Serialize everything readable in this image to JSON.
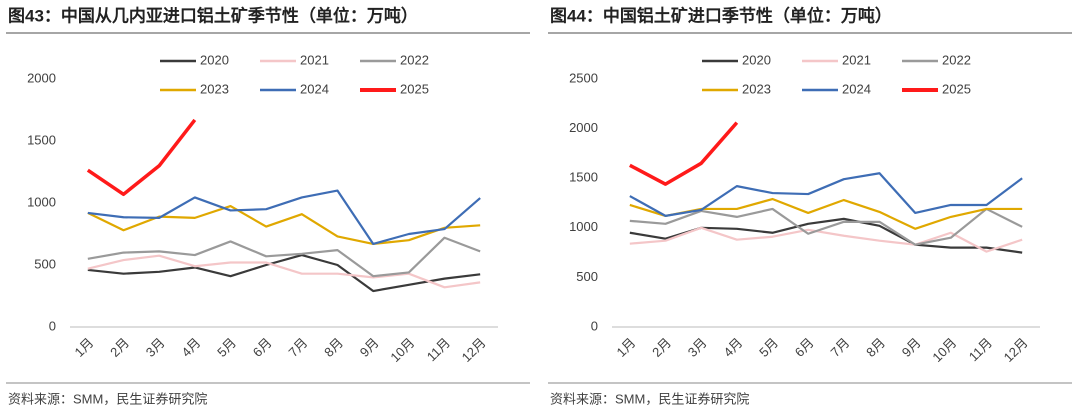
{
  "charts": [
    {
      "type": "line",
      "title": "图43：中国从几内亚进口铝土矿季节性（单位：万吨）",
      "source": "资料来源：SMM，民生证券研究院",
      "categories": [
        "1月",
        "2月",
        "3月",
        "4月",
        "5月",
        "6月",
        "7月",
        "8月",
        "9月",
        "10月",
        "11月",
        "12月"
      ],
      "ylim": [
        0,
        2000
      ],
      "yticks": [
        0,
        500,
        1000,
        1500,
        2000
      ],
      "series": [
        {
          "name": "2020",
          "color": "#3a3a3a",
          "values": [
            460,
            430,
            445,
            480,
            410,
            500,
            580,
            500,
            290,
            340,
            390,
            425
          ]
        },
        {
          "name": "2021",
          "color": "#f4c6c8",
          "values": [
            470,
            540,
            575,
            490,
            520,
            520,
            430,
            430,
            400,
            430,
            320,
            360
          ]
        },
        {
          "name": "2022",
          "color": "#9a9a9a",
          "values": [
            550,
            600,
            610,
            580,
            690,
            570,
            590,
            620,
            410,
            440,
            720,
            610
          ]
        },
        {
          "name": "2023",
          "color": "#e0a800",
          "values": [
            920,
            780,
            890,
            880,
            975,
            810,
            910,
            730,
            670,
            700,
            800,
            820
          ]
        },
        {
          "name": "2024",
          "color": "#3e6db5",
          "values": [
            920,
            885,
            880,
            1045,
            940,
            950,
            1045,
            1100,
            670,
            750,
            790,
            1040
          ]
        },
        {
          "name": "2025",
          "color": "#ff1a1a",
          "values": [
            1265,
            1070,
            1300,
            1670,
            null,
            null,
            null,
            null,
            null,
            null,
            null,
            null
          ]
        }
      ]
    },
    {
      "type": "line",
      "title": "图44：中国铝土矿进口季节性（单位：万吨）",
      "source": "资料来源：SMM，民生证券研究院",
      "categories": [
        "1月",
        "2月",
        "3月",
        "4月",
        "5月",
        "6月",
        "7月",
        "8月",
        "9月",
        "10月",
        "11月",
        "12月"
      ],
      "ylim": [
        0,
        2500
      ],
      "yticks": [
        0,
        500,
        1000,
        1500,
        2000,
        2500
      ],
      "series": [
        {
          "name": "2020",
          "color": "#3a3a3a",
          "values": [
            950,
            890,
            1000,
            990,
            950,
            1040,
            1090,
            1020,
            830,
            800,
            800,
            750
          ]
        },
        {
          "name": "2021",
          "color": "#f4c6c8",
          "values": [
            840,
            870,
            1000,
            880,
            910,
            980,
            920,
            870,
            830,
            950,
            760,
            880
          ]
        },
        {
          "name": "2022",
          "color": "#9a9a9a",
          "values": [
            1070,
            1040,
            1170,
            1110,
            1190,
            940,
            1060,
            1060,
            830,
            900,
            1190,
            1010
          ]
        },
        {
          "name": "2023",
          "color": "#e0a800",
          "values": [
            1230,
            1120,
            1190,
            1190,
            1290,
            1150,
            1280,
            1160,
            990,
            1110,
            1190,
            1190
          ]
        },
        {
          "name": "2024",
          "color": "#3e6db5",
          "values": [
            1320,
            1120,
            1180,
            1420,
            1350,
            1340,
            1490,
            1550,
            1150,
            1230,
            1230,
            1500
          ]
        },
        {
          "name": "2025",
          "color": "#ff1a1a",
          "values": [
            1630,
            1440,
            1650,
            2060,
            null,
            null,
            null,
            null,
            null,
            null,
            null,
            null
          ]
        }
      ]
    }
  ]
}
